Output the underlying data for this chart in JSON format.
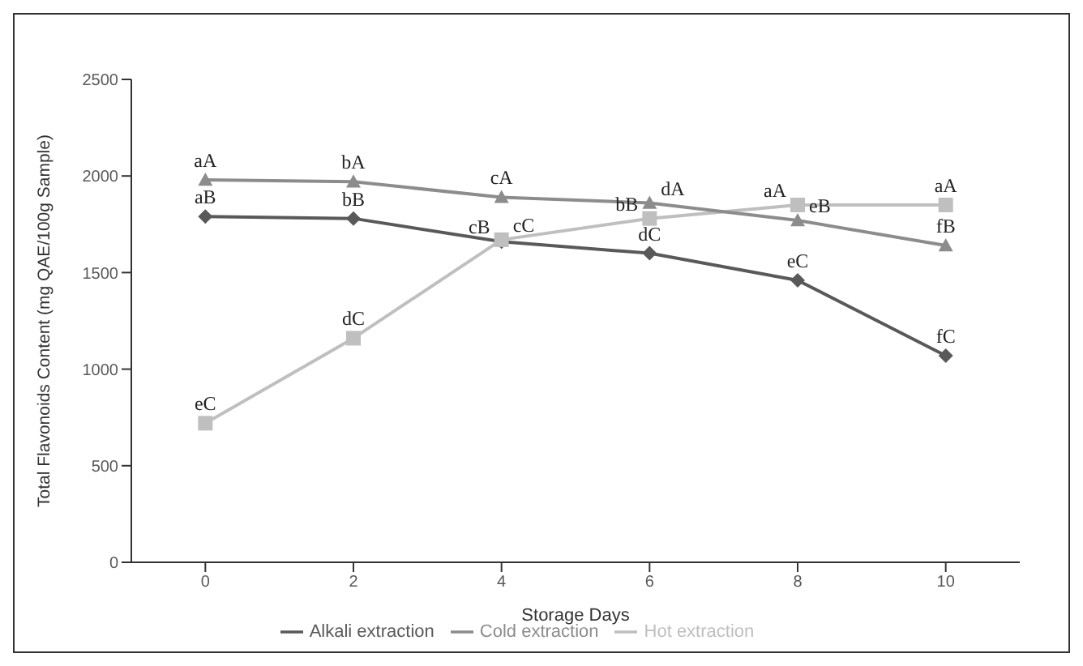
{
  "chart_data": {
    "type": "line",
    "xlabel": "Storage Days",
    "ylabel": "Total Flavonoids Content (mg QAE/100g Sample)",
    "x": [
      0,
      2,
      4,
      6,
      8,
      10
    ],
    "xlim": [
      -1,
      11
    ],
    "xticks": [
      0,
      2,
      4,
      6,
      8,
      10
    ],
    "ylim": [
      0,
      2500
    ],
    "yticks": [
      0,
      500,
      1000,
      1500,
      2000,
      2500
    ],
    "grid": false,
    "legend": "bottom",
    "series": [
      {
        "name": "Alkali extraction",
        "color": "#595959",
        "marker": "diamond",
        "values": [
          1790,
          1780,
          1660,
          1600,
          1460,
          1070
        ],
        "value_labels": [
          "aB",
          "bB",
          "cB",
          "dC",
          "eC",
          "fC"
        ]
      },
      {
        "name": "Hot extraction",
        "color": "#bfbfbf",
        "marker": "square",
        "values": [
          720,
          1160,
          1670,
          1780,
          1850,
          1850
        ],
        "value_labels": [
          "eC",
          "dC",
          "cC",
          "bB",
          "aA",
          "aA"
        ]
      },
      {
        "name": "Cold extraction",
        "color": "#8c8c8c",
        "marker": "triangle",
        "values": [
          1980,
          1970,
          1890,
          1860,
          1770,
          1640
        ],
        "value_labels": [
          "aA",
          "bA",
          "cA",
          "dA",
          "eB",
          "fB"
        ]
      }
    ]
  }
}
